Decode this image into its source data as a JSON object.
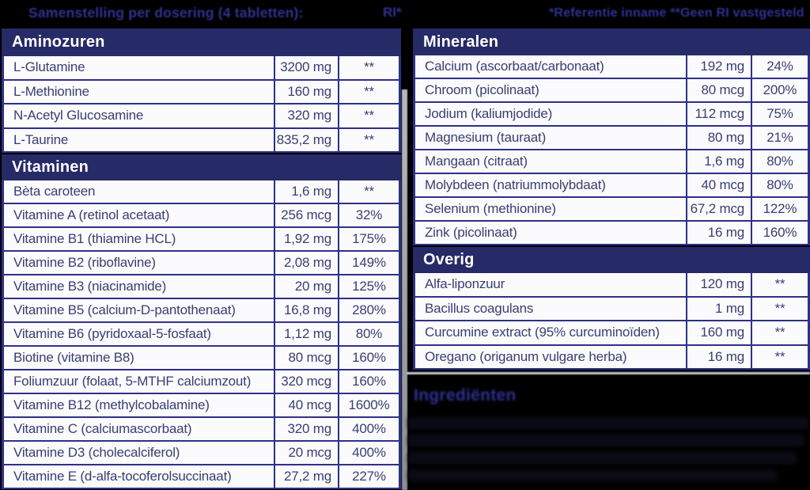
{
  "colors": {
    "background": "#000000",
    "section_header_bg": "#262a66",
    "table_border": "#2d3188",
    "table_text": "#393e72",
    "accent_blue": "#2e3192",
    "row_bg": "#fbfbfd",
    "header_text": "#ffffff"
  },
  "header": {
    "left_title": "Samenstelling per dosering (4 tabletten):",
    "ri_column_label": "RI*",
    "right_note": "*Referentie inname **Geen RI vastgesteld"
  },
  "tables": {
    "aminozuren": {
      "title": "Aminozuren",
      "rows": [
        {
          "name": "L-Glutamine",
          "amount": "3200 mg",
          "ri": "**"
        },
        {
          "name": "L-Methionine",
          "amount": "160 mg",
          "ri": "**"
        },
        {
          "name": "N-Acetyl Glucosamine",
          "amount": "320 mg",
          "ri": "**"
        },
        {
          "name": "L-Taurine",
          "amount": "835,2 mg",
          "ri": "**"
        }
      ]
    },
    "vitaminen": {
      "title": "Vitaminen",
      "rows": [
        {
          "name": "Bèta caroteen",
          "amount": "1,6 mg",
          "ri": "**"
        },
        {
          "name": "Vitamine A (retinol acetaat)",
          "amount": "256 mcg",
          "ri": "32%"
        },
        {
          "name": "Vitamine B1 (thiamine HCL)",
          "amount": "1,92 mg",
          "ri": "175%"
        },
        {
          "name": "Vitamine B2 (riboflavine)",
          "amount": "2,08 mg",
          "ri": "149%"
        },
        {
          "name": "Vitamine B3 (niacinamide)",
          "amount": "20 mg",
          "ri": "125%"
        },
        {
          "name": "Vitamine B5 (calcium-D-pantothenaat)",
          "amount": "16,8 mg",
          "ri": "280%"
        },
        {
          "name": "Vitamine B6 (pyridoxaal-5-fosfaat)",
          "amount": "1,12 mg",
          "ri": "80%"
        },
        {
          "name": "Biotine (vitamine B8)",
          "amount": "80 mcg",
          "ri": "160%"
        },
        {
          "name": "Foliumzuur (folaat, 5-MTHF calciumzout)",
          "amount": "320 mcg",
          "ri": "160%"
        },
        {
          "name": "Vitamine B12 (methylcobalamine)",
          "amount": "40 mcg",
          "ri": "1600%"
        },
        {
          "name": "Vitamine C (calciumascorbaat)",
          "amount": "320 mg",
          "ri": "400%"
        },
        {
          "name": "Vitamine D3 (cholecalciferol)",
          "amount": "20 mcg",
          "ri": "400%"
        },
        {
          "name": "Vitamine E (d-alfa-tocoferolsuccinaat)",
          "amount": "27,2 mg",
          "ri": "227%"
        }
      ]
    },
    "mineralen": {
      "title": "Mineralen",
      "rows": [
        {
          "name": "Calcium (ascorbaat/carbonaat)",
          "amount": "192 mg",
          "ri": "24%"
        },
        {
          "name": "Chroom (picolinaat)",
          "amount": "80 mcg",
          "ri": "200%"
        },
        {
          "name": "Jodium (kaliumjodide)",
          "amount": "112 mcg",
          "ri": "75%"
        },
        {
          "name": "Magnesium (tauraat)",
          "amount": "80 mg",
          "ri": "21%"
        },
        {
          "name": "Mangaan (citraat)",
          "amount": "1,6 mg",
          "ri": "80%"
        },
        {
          "name": "Molybdeen (natriummolybdaat)",
          "amount": "40 mcg",
          "ri": "80%"
        },
        {
          "name": "Selenium (methionine)",
          "amount": "67,2 mcg",
          "ri": "122%"
        },
        {
          "name": "Zink (picolinaat)",
          "amount": "16 mg",
          "ri": "160%"
        }
      ]
    },
    "overig": {
      "title": "Overig",
      "rows": [
        {
          "name": "Alfa-liponzuur",
          "amount": "120 mg",
          "ri": "**"
        },
        {
          "name": "Bacillus coagulans",
          "amount": "1 mg",
          "ri": "**"
        },
        {
          "name": "Curcumine extract (95% curcuminoïden)",
          "amount": "160 mg",
          "ri": "**"
        },
        {
          "name": "Oregano (origanum vulgare herba)",
          "amount": "16 mg",
          "ri": "**"
        }
      ]
    }
  },
  "footer": {
    "heading": "Ingrediënten"
  }
}
